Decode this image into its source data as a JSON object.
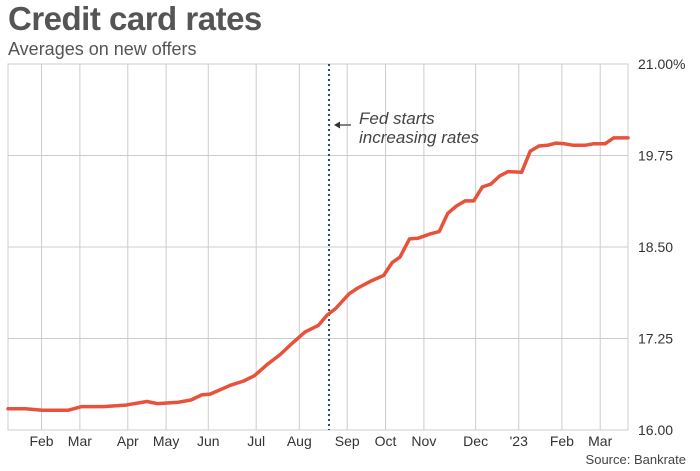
{
  "header": {
    "title": "Credit card rates",
    "subtitle": "Averages on new offers",
    "source": "Source: Bankrate"
  },
  "annotation": {
    "lines": [
      "Fed starts",
      "increasing rates"
    ],
    "x": 33.5
  },
  "colors": {
    "line": "#e8513a",
    "grid": "#cccccc",
    "axis": "#333333",
    "annotation": "#1f4e79",
    "text": "#555555"
  },
  "chart_data": {
    "type": "line",
    "title": "Credit card rates",
    "subtitle": "Averages on new offers",
    "xlabel": "",
    "ylabel": "",
    "ylim": [
      16.0,
      21.0
    ],
    "xlim": [
      0,
      64.7
    ],
    "yticks": [
      {
        "value": 16.0,
        "label": "16.00"
      },
      {
        "value": 17.25,
        "label": "17.25"
      },
      {
        "value": 18.5,
        "label": "18.50"
      },
      {
        "value": 19.75,
        "label": "19.75"
      },
      {
        "value": 21.0,
        "label": "21.00%"
      }
    ],
    "xticks": [
      {
        "x": 3.5,
        "label": "Feb"
      },
      {
        "x": 7.5,
        "label": "Mar"
      },
      {
        "x": 12.5,
        "label": "Apr"
      },
      {
        "x": 16.5,
        "label": "May"
      },
      {
        "x": 20.9,
        "label": "Jun"
      },
      {
        "x": 25.9,
        "label": "Jul"
      },
      {
        "x": 30.4,
        "label": "Aug"
      },
      {
        "x": 35.4,
        "label": "Sep"
      },
      {
        "x": 39.4,
        "label": "Oct"
      },
      {
        "x": 43.4,
        "label": "Nov"
      },
      {
        "x": 48.8,
        "label": "Dec"
      },
      {
        "x": 53.3,
        "label": "'23"
      },
      {
        "x": 57.8,
        "label": "Feb"
      },
      {
        "x": 61.8,
        "label": "Mar"
      }
    ],
    "grid": true,
    "series": [
      {
        "values": [
          [
            0,
            16.29
          ],
          [
            1.8,
            16.29
          ],
          [
            3.6,
            16.27
          ],
          [
            5.4,
            16.27
          ],
          [
            6.3,
            16.27
          ],
          [
            7.7,
            16.32
          ],
          [
            9.9,
            16.32
          ],
          [
            12.3,
            16.34
          ],
          [
            14.5,
            16.39
          ],
          [
            15.6,
            16.36
          ],
          [
            17.8,
            16.38
          ],
          [
            19.1,
            16.41
          ],
          [
            20.2,
            16.48
          ],
          [
            21.1,
            16.49
          ],
          [
            23.2,
            16.61
          ],
          [
            24.6,
            16.67
          ],
          [
            25.7,
            16.74
          ],
          [
            27.0,
            16.89
          ],
          [
            28.4,
            17.03
          ],
          [
            29.7,
            17.19
          ],
          [
            31.0,
            17.34
          ],
          [
            32.4,
            17.43
          ],
          [
            33.3,
            17.57
          ],
          [
            34.2,
            17.66
          ],
          [
            35.6,
            17.86
          ],
          [
            36.5,
            17.94
          ],
          [
            37.8,
            18.03
          ],
          [
            39.2,
            18.11
          ],
          [
            40.1,
            18.29
          ],
          [
            40.9,
            18.36
          ],
          [
            41.9,
            18.61
          ],
          [
            42.8,
            18.62
          ],
          [
            44.1,
            18.68
          ],
          [
            45.0,
            18.71
          ],
          [
            45.9,
            18.96
          ],
          [
            46.8,
            19.06
          ],
          [
            47.7,
            19.13
          ],
          [
            48.6,
            19.13
          ],
          [
            49.5,
            19.32
          ],
          [
            50.4,
            19.36
          ],
          [
            51.3,
            19.47
          ],
          [
            52.2,
            19.53
          ],
          [
            53.6,
            19.52
          ],
          [
            54.5,
            19.81
          ],
          [
            55.4,
            19.88
          ],
          [
            56.3,
            19.89
          ],
          [
            57.2,
            19.92
          ],
          [
            58.1,
            19.91
          ],
          [
            59.0,
            19.89
          ],
          [
            60.2,
            19.89
          ],
          [
            61.1,
            19.91
          ],
          [
            62.3,
            19.91
          ],
          [
            63.2,
            19.99
          ],
          [
            64.7,
            19.99
          ]
        ]
      }
    ]
  }
}
